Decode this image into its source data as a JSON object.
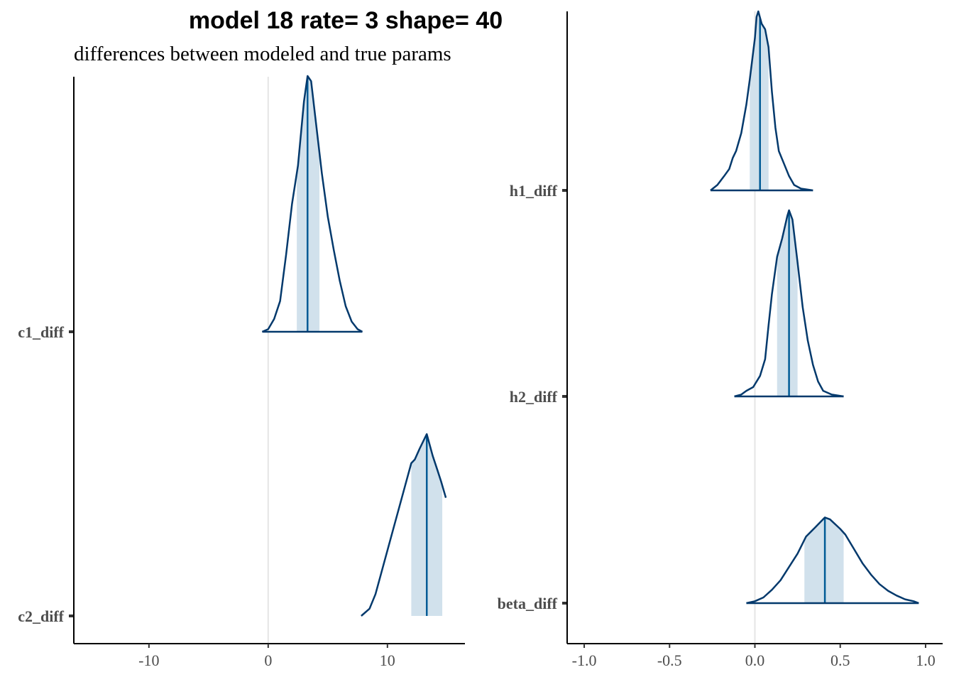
{
  "title": "model 18 rate= 3 shape= 40",
  "subtitle": "differences between modeled and true params",
  "colors": {
    "density_line": "#03396c",
    "interval_fill": "#d1e1ec",
    "median_line": "#005b96",
    "ref_line": "#e5e5e5",
    "axis": "#000000",
    "tick_text": "#4d4d4d"
  },
  "chart_data": [
    {
      "type": "area",
      "panel": "left",
      "xlim": [
        -16.3,
        16.5
      ],
      "xticks": [
        -10,
        0,
        10
      ],
      "xtick_labels": [
        "-10",
        "0",
        "10"
      ],
      "ref_line": 0,
      "categories": [
        "c1_diff",
        "c2_diff"
      ],
      "series": [
        {
          "name": "c1_diff",
          "median": 3.3,
          "interval": [
            2.4,
            4.3
          ],
          "density": [
            [
              -0.5,
              0
            ],
            [
              0,
              0.01
            ],
            [
              0.5,
              0.05
            ],
            [
              1,
              0.12
            ],
            [
              1.5,
              0.3
            ],
            [
              2,
              0.5
            ],
            [
              2.5,
              0.65
            ],
            [
              3,
              0.9
            ],
            [
              3.3,
              1.0
            ],
            [
              3.6,
              0.98
            ],
            [
              4,
              0.82
            ],
            [
              4.5,
              0.62
            ],
            [
              5,
              0.45
            ],
            [
              5.5,
              0.32
            ],
            [
              6,
              0.2
            ],
            [
              6.5,
              0.1
            ],
            [
              7,
              0.04
            ],
            [
              7.5,
              0.01
            ],
            [
              7.9,
              0
            ]
          ]
        },
        {
          "name": "c2_diff",
          "median": 13.3,
          "interval": [
            12.0,
            14.6
          ],
          "density": [
            [
              7.8,
              0
            ],
            [
              8.5,
              0.04
            ],
            [
              9,
              0.12
            ],
            [
              9.5,
              0.24
            ],
            [
              10,
              0.36
            ],
            [
              10.5,
              0.48
            ],
            [
              11,
              0.6
            ],
            [
              11.5,
              0.72
            ],
            [
              12,
              0.84
            ],
            [
              12.3,
              0.86
            ],
            [
              12.7,
              0.92
            ],
            [
              13.3,
              1.0
            ],
            [
              13.8,
              0.88
            ],
            [
              14.2,
              0.8
            ],
            [
              14.5,
              0.74
            ],
            [
              14.9,
              0.65
            ]
          ]
        }
      ]
    },
    {
      "type": "area",
      "panel": "right",
      "xlim": [
        -1.1,
        1.1
      ],
      "xticks": [
        -1.0,
        -0.5,
        0.0,
        0.5,
        1.0
      ],
      "xtick_labels": [
        "-1.0",
        "-0.5",
        "0.0",
        "0.5",
        "1.0"
      ],
      "ref_line": 0,
      "categories": [
        "h1_diff",
        "h2_diff",
        "beta_diff"
      ],
      "series": [
        {
          "name": "h1_diff",
          "median": 0.03,
          "interval": [
            -0.03,
            0.08
          ],
          "density": [
            [
              -0.26,
              0
            ],
            [
              -0.22,
              0.03
            ],
            [
              -0.18,
              0.08
            ],
            [
              -0.15,
              0.12
            ],
            [
              -0.13,
              0.18
            ],
            [
              -0.11,
              0.22
            ],
            [
              -0.08,
              0.32
            ],
            [
              -0.05,
              0.48
            ],
            [
              -0.03,
              0.62
            ],
            [
              0,
              0.85
            ],
            [
              0.01,
              0.97
            ],
            [
              0.02,
              1.0
            ],
            [
              0.04,
              0.93
            ],
            [
              0.06,
              0.9
            ],
            [
              0.08,
              0.8
            ],
            [
              0.1,
              0.55
            ],
            [
              0.12,
              0.35
            ],
            [
              0.14,
              0.22
            ],
            [
              0.17,
              0.15
            ],
            [
              0.2,
              0.08
            ],
            [
              0.23,
              0.03
            ],
            [
              0.27,
              0.01
            ],
            [
              0.34,
              0
            ]
          ]
        },
        {
          "name": "h2_diff",
          "median": 0.2,
          "interval": [
            0.13,
            0.25
          ],
          "density": [
            [
              -0.12,
              0
            ],
            [
              -0.08,
              0.01
            ],
            [
              -0.05,
              0.03
            ],
            [
              -0.01,
              0.05
            ],
            [
              0.03,
              0.11
            ],
            [
              0.06,
              0.2
            ],
            [
              0.08,
              0.38
            ],
            [
              0.1,
              0.55
            ],
            [
              0.13,
              0.75
            ],
            [
              0.16,
              0.85
            ],
            [
              0.19,
              0.97
            ],
            [
              0.2,
              1.0
            ],
            [
              0.22,
              0.95
            ],
            [
              0.25,
              0.72
            ],
            [
              0.28,
              0.48
            ],
            [
              0.31,
              0.3
            ],
            [
              0.34,
              0.17
            ],
            [
              0.37,
              0.08
            ],
            [
              0.4,
              0.03
            ],
            [
              0.45,
              0.01
            ],
            [
              0.52,
              0
            ]
          ]
        },
        {
          "name": "beta_diff",
          "median": 0.41,
          "interval": [
            0.29,
            0.52
          ],
          "density": [
            [
              -0.05,
              0
            ],
            [
              0,
              0.02
            ],
            [
              0.05,
              0.06
            ],
            [
              0.1,
              0.14
            ],
            [
              0.15,
              0.24
            ],
            [
              0.2,
              0.38
            ],
            [
              0.25,
              0.52
            ],
            [
              0.3,
              0.7
            ],
            [
              0.35,
              0.79
            ],
            [
              0.41,
              0.9
            ],
            [
              0.44,
              0.88
            ],
            [
              0.5,
              0.78
            ],
            [
              0.53,
              0.72
            ],
            [
              0.58,
              0.57
            ],
            [
              0.63,
              0.42
            ],
            [
              0.68,
              0.3
            ],
            [
              0.73,
              0.2
            ],
            [
              0.78,
              0.13
            ],
            [
              0.83,
              0.08
            ],
            [
              0.88,
              0.04
            ],
            [
              0.93,
              0.02
            ],
            [
              0.96,
              0
            ]
          ]
        }
      ]
    }
  ]
}
